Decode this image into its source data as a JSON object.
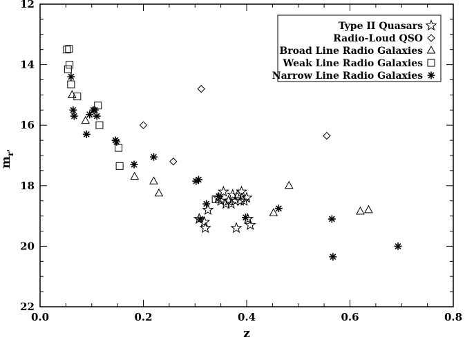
{
  "chart_data": {
    "type": "scatter",
    "title": "",
    "xlabel": "z",
    "ylabel": "m_r'",
    "xlim": [
      0.0,
      0.8
    ],
    "ylim": [
      22,
      12
    ],
    "y_axis_inverted": true,
    "x_ticks": [
      0.0,
      0.2,
      0.4,
      0.6,
      0.8
    ],
    "x_tick_labels": [
      "0.0",
      "0.2",
      "0.4",
      "0.6",
      "0.8"
    ],
    "y_ticks": [
      12,
      14,
      16,
      18,
      20,
      22
    ],
    "y_tick_labels": [
      "12",
      "14",
      "16",
      "18",
      "20",
      "22"
    ],
    "grid": false,
    "legend_position": "top-right",
    "series": [
      {
        "name": "Type II Quasars",
        "marker": "star",
        "points": [
          [
            0.308,
            19.1
          ],
          [
            0.318,
            19.2
          ],
          [
            0.32,
            19.4
          ],
          [
            0.325,
            18.8
          ],
          [
            0.345,
            18.4
          ],
          [
            0.35,
            18.5
          ],
          [
            0.355,
            18.2
          ],
          [
            0.36,
            18.6
          ],
          [
            0.365,
            18.5
          ],
          [
            0.37,
            18.6
          ],
          [
            0.373,
            18.3
          ],
          [
            0.378,
            18.5
          ],
          [
            0.38,
            19.4
          ],
          [
            0.383,
            18.3
          ],
          [
            0.388,
            18.5
          ],
          [
            0.39,
            18.2
          ],
          [
            0.395,
            18.5
          ],
          [
            0.4,
            18.4
          ],
          [
            0.402,
            19.1
          ],
          [
            0.407,
            19.3
          ]
        ]
      },
      {
        "name": "Radio-Loud QSO",
        "marker": "diamond",
        "points": [
          [
            0.2,
            16.0
          ],
          [
            0.258,
            17.2
          ],
          [
            0.312,
            14.8
          ],
          [
            0.555,
            16.35
          ]
        ]
      },
      {
        "name": "Broad Line Radio Galaxies",
        "marker": "triangle",
        "points": [
          [
            0.062,
            15.0
          ],
          [
            0.088,
            15.85
          ],
          [
            0.183,
            17.7
          ],
          [
            0.22,
            17.85
          ],
          [
            0.23,
            18.25
          ],
          [
            0.452,
            18.9
          ],
          [
            0.482,
            18.0
          ],
          [
            0.62,
            18.85
          ],
          [
            0.636,
            18.8
          ]
        ]
      },
      {
        "name": "Weak Line Radio Galaxies",
        "marker": "square",
        "points": [
          [
            0.052,
            13.5
          ],
          [
            0.056,
            13.48
          ],
          [
            0.057,
            14.0
          ],
          [
            0.054,
            14.15
          ],
          [
            0.06,
            14.65
          ],
          [
            0.072,
            15.05
          ],
          [
            0.112,
            15.35
          ],
          [
            0.115,
            16.0
          ],
          [
            0.152,
            16.75
          ],
          [
            0.154,
            17.35
          ],
          [
            0.34,
            18.45
          ]
        ]
      },
      {
        "name": "Narrow Line Radio Galaxies",
        "marker": "asterisk",
        "points": [
          [
            0.06,
            14.4
          ],
          [
            0.064,
            15.5
          ],
          [
            0.066,
            15.7
          ],
          [
            0.09,
            16.3
          ],
          [
            0.096,
            15.65
          ],
          [
            0.103,
            15.5
          ],
          [
            0.106,
            15.5
          ],
          [
            0.11,
            15.7
          ],
          [
            0.146,
            16.5
          ],
          [
            0.148,
            16.55
          ],
          [
            0.182,
            17.3
          ],
          [
            0.22,
            17.05
          ],
          [
            0.302,
            17.85
          ],
          [
            0.307,
            17.8
          ],
          [
            0.31,
            19.1
          ],
          [
            0.322,
            18.6
          ],
          [
            0.346,
            18.35
          ],
          [
            0.398,
            19.05
          ],
          [
            0.462,
            18.75
          ],
          [
            0.565,
            19.1
          ],
          [
            0.567,
            20.35
          ],
          [
            0.693,
            20.0
          ]
        ]
      }
    ]
  }
}
